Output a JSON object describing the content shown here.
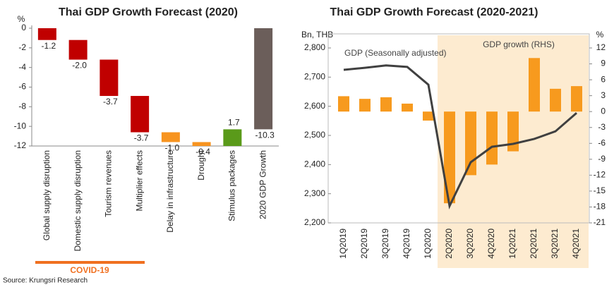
{
  "chart_data": [
    {
      "type": "waterfall",
      "title": "Thai GDP Growth Forecast (2020)",
      "y_label": "%",
      "categories": [
        "Global supply disruption",
        "Domestic supply disruption",
        "Tourism revenues",
        "Multiplier effects",
        "Delay in infrastructure",
        "Drought",
        "Stimulus packages",
        "2020 GDP Growth"
      ],
      "values": [
        -1.2,
        -2.0,
        -3.7,
        -3.7,
        -1.0,
        -0.4,
        1.7,
        -10.3
      ],
      "value_labels": [
        "-1.2",
        "-2.0",
        "-3.7",
        "-3.7",
        "-1.0",
        "-0.4",
        "1.7",
        "-10.3"
      ],
      "colors": [
        "#c00000",
        "#c00000",
        "#c00000",
        "#c00000",
        "#f79420",
        "#f79420",
        "#5a9a1a",
        "#6b5e5a"
      ],
      "ylim": [
        -12,
        0
      ],
      "yticks": [
        0,
        -2,
        -4,
        -6,
        -8,
        -10,
        -12
      ],
      "annotation": "COVID-19",
      "source": "Source: Krungsri Research"
    },
    {
      "type": "bar-line",
      "title": "Thai GDP Growth Forecast (2020-2021)",
      "y_label": "Bn, THB",
      "y2_label": "%",
      "categories": [
        "1Q2019",
        "2Q2019",
        "3Q2019",
        "4Q2019",
        "1Q2020",
        "2Q2020",
        "3Q2020",
        "4Q2020",
        "1Q2021",
        "2Q2021",
        "3Q2021",
        "4Q2021"
      ],
      "series": [
        {
          "name": "GDP growth (RHS)",
          "type": "bar",
          "axis": "y2",
          "color": "#f79a1e",
          "values": [
            2.9,
            2.4,
            2.7,
            1.5,
            -1.7,
            -17.3,
            -12.0,
            -10.0,
            -7.5,
            10.1,
            4.3,
            4.8
          ]
        },
        {
          "name": "GDP (Seasonally adjusted)",
          "type": "line",
          "axis": "y",
          "color": "#404040",
          "values": [
            2725,
            2732,
            2740,
            2735,
            2674,
            2258,
            2408,
            2461,
            2471,
            2488,
            2514,
            2577
          ]
        }
      ],
      "ylim": [
        2200,
        2800
      ],
      "yticks": [
        {
          "value": 2200,
          "label": "2,200"
        },
        {
          "value": 2300,
          "label": "2,300"
        },
        {
          "value": 2400,
          "label": "2,400"
        },
        {
          "value": 2500,
          "label": "2,500"
        },
        {
          "value": 2600,
          "label": "2,600"
        },
        {
          "value": 2700,
          "label": "2,700"
        },
        {
          "value": 2800,
          "label": "2,800"
        }
      ],
      "y2lim": [
        -21,
        12
      ],
      "y2ticks": [
        12,
        9,
        6,
        3,
        0,
        -3,
        -6,
        -9,
        -12,
        -15,
        -18,
        -21
      ]
    }
  ]
}
